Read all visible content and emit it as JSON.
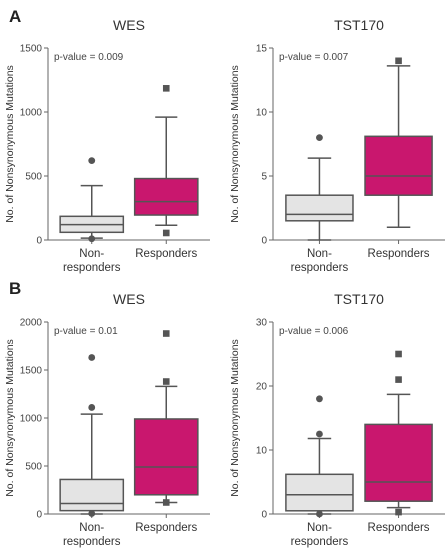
{
  "colors": {
    "nonresponder_fill": "#e4e4e4",
    "responder_fill": "#c9176e",
    "box_stroke": "#555555",
    "text": "#333333"
  },
  "rows": [
    {
      "letter": "A"
    },
    {
      "letter": "B"
    }
  ],
  "chart_data": [
    {
      "type": "box",
      "panel": "A",
      "title": "WES",
      "ylabel": "No. of Nonsynonymous Mutations",
      "ylim": [
        0,
        1500
      ],
      "yticks": [
        "0",
        "500",
        "1000",
        "1500"
      ],
      "annotation": "p-value = 0.009",
      "categories": [
        "Non-\nresponders",
        "Responders"
      ],
      "boxes": [
        {
          "group": "Non-responders",
          "whisker_low": 15,
          "q1": 60,
          "median": 120,
          "q3": 185,
          "whisker_high": 425,
          "outliers": [
            {
              "value": 620,
              "marker": "circle"
            },
            {
              "value": 10,
              "marker": "circle"
            }
          ]
        },
        {
          "group": "Responders",
          "whisker_low": 115,
          "q1": 195,
          "median": 300,
          "q3": 480,
          "whisker_high": 960,
          "outliers": [
            {
              "value": 1185,
              "marker": "square"
            },
            {
              "value": 55,
              "marker": "square"
            }
          ]
        }
      ]
    },
    {
      "type": "box",
      "panel": "A",
      "title": "TST170",
      "ylabel": "No. of Nonsynonymous Mutations",
      "ylim": [
        0,
        15
      ],
      "yticks": [
        "0",
        "5",
        "10",
        "15"
      ],
      "annotation": "p-value = 0.007",
      "categories": [
        "Non-\nresponders",
        "Responders"
      ],
      "boxes": [
        {
          "group": "Non-responders",
          "whisker_low": 0,
          "q1": 1.5,
          "median": 2,
          "q3": 3.5,
          "whisker_high": 6.4,
          "outliers": [
            {
              "value": 8,
              "marker": "circle"
            }
          ]
        },
        {
          "group": "Responders",
          "whisker_low": 1,
          "q1": 3.5,
          "median": 5,
          "q3": 8.1,
          "whisker_high": 13.6,
          "outliers": [
            {
              "value": 14,
              "marker": "square"
            }
          ]
        }
      ]
    },
    {
      "type": "box",
      "panel": "B",
      "title": "WES",
      "ylabel": "No. of Nonsynonymous Mutations",
      "ylim": [
        0,
        2000
      ],
      "yticks": [
        "0",
        "500",
        "1000",
        "1500",
        "2000"
      ],
      "annotation": "p-value = 0.01",
      "categories": [
        "Non-\nresponders",
        "Responders"
      ],
      "boxes": [
        {
          "group": "Non-responders",
          "whisker_low": 0,
          "q1": 35,
          "median": 110,
          "q3": 360,
          "whisker_high": 1040,
          "outliers": [
            {
              "value": 1630,
              "marker": "circle"
            },
            {
              "value": 1110,
              "marker": "circle"
            },
            {
              "value": 5,
              "marker": "circle"
            }
          ]
        },
        {
          "group": "Responders",
          "whisker_low": 120,
          "q1": 200,
          "median": 490,
          "q3": 990,
          "whisker_high": 1330,
          "outliers": [
            {
              "value": 1880,
              "marker": "square"
            },
            {
              "value": 1380,
              "marker": "square"
            },
            {
              "value": 120,
              "marker": "square"
            }
          ]
        }
      ]
    },
    {
      "type": "box",
      "panel": "B",
      "title": "TST170",
      "ylabel": "No. of Nonsynonymous Mutations",
      "ylim": [
        0,
        30
      ],
      "yticks": [
        "0",
        "10",
        "20",
        "30"
      ],
      "annotation": "p-value = 0.006",
      "categories": [
        "Non-\nresponders",
        "Responders"
      ],
      "boxes": [
        {
          "group": "Non-responders",
          "whisker_low": 0,
          "q1": 0.5,
          "median": 3,
          "q3": 6.2,
          "whisker_high": 11.8,
          "outliers": [
            {
              "value": 18,
              "marker": "circle"
            },
            {
              "value": 12.5,
              "marker": "circle"
            },
            {
              "value": 0,
              "marker": "circle"
            }
          ]
        },
        {
          "group": "Responders",
          "whisker_low": 1,
          "q1": 2,
          "median": 5,
          "q3": 14,
          "whisker_high": 18.7,
          "outliers": [
            {
              "value": 25,
              "marker": "square"
            },
            {
              "value": 21,
              "marker": "square"
            },
            {
              "value": 0.3,
              "marker": "square"
            }
          ]
        }
      ]
    }
  ]
}
